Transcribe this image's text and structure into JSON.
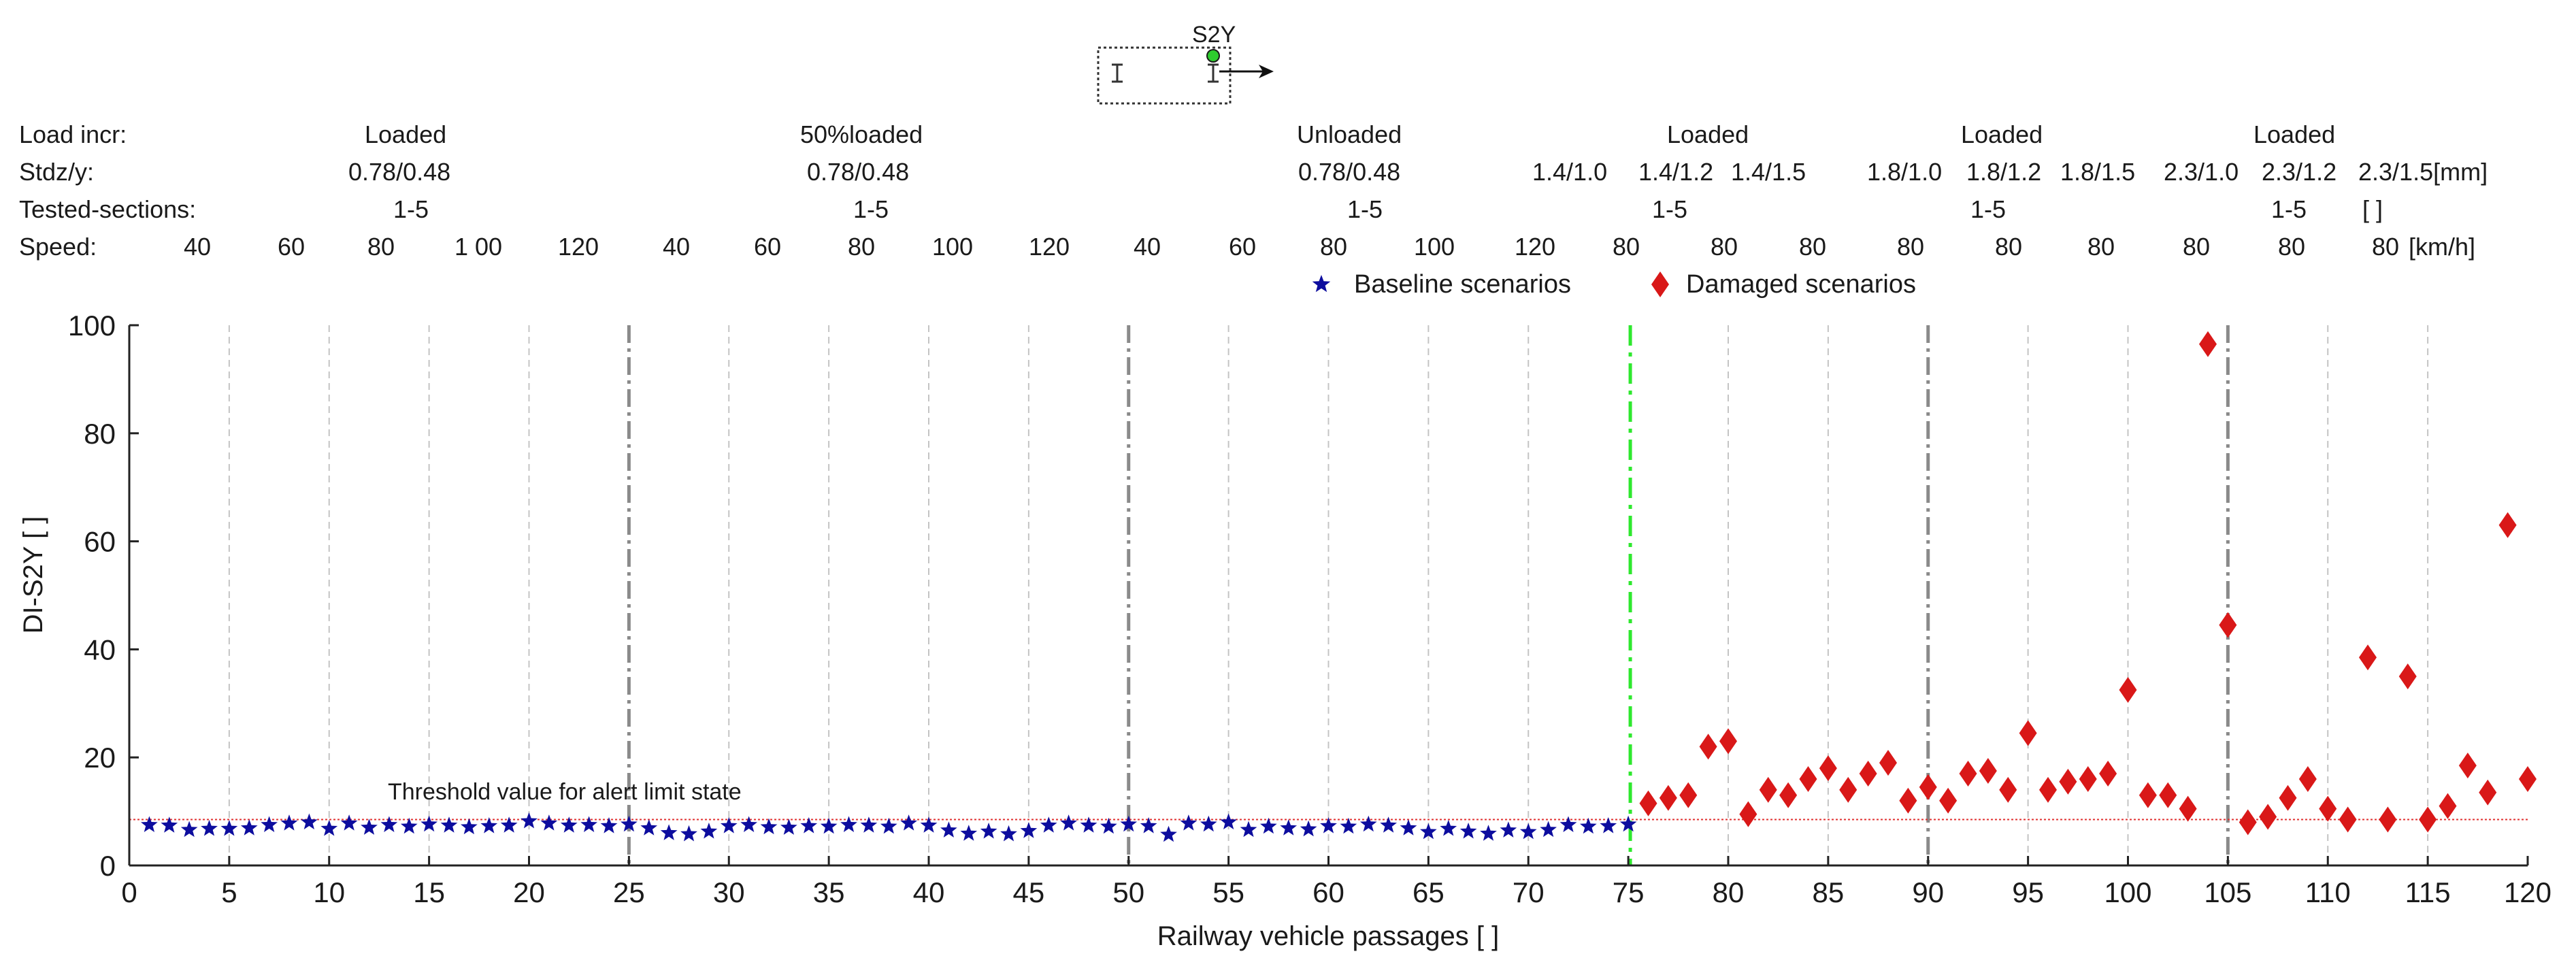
{
  "sensor": {
    "label": "S2Y"
  },
  "header_rows": {
    "load_incr": {
      "label": "Load incr:",
      "values": [
        "Loaded",
        "50%loaded",
        "Unloaded",
        "Loaded",
        "Loaded",
        "Loaded"
      ]
    },
    "stdz_y": {
      "label": "Stdz/y:",
      "values": [
        "0.78/0.48",
        "0.78/0.48",
        "0.78/0.48",
        "1.4/1.0",
        "1.4/1.2",
        "1.4/1.5",
        "1.8/1.0",
        "1.8/1.2",
        "1.8/1.5",
        "2.3/1.0",
        "2.3/1.2",
        "2.3/1.5[mm]"
      ]
    },
    "tested_sections": {
      "label": "Tested-sections:",
      "values": [
        "1-5",
        "1-5",
        "1-5",
        "1-5",
        "1-5",
        "1-5",
        "[ ]"
      ]
    },
    "speed": {
      "label": "Speed:",
      "values": [
        "40",
        "60",
        "80",
        "1 00",
        "120",
        "40",
        "60",
        "80",
        "100",
        "120",
        "40",
        "60",
        "80",
        "100",
        "120",
        "80",
        "80",
        "80",
        "80",
        "80",
        "80",
        "80",
        "80",
        "80",
        "[km/h]"
      ]
    }
  },
  "chart_data": {
    "type": "scatter",
    "title": "",
    "xlabel": "Railway vehicle passages [ ]",
    "ylabel": "DI-S2Y [ ]",
    "xlim": [
      0,
      120
    ],
    "ylim": [
      0,
      100
    ],
    "xticks": [
      0,
      5,
      10,
      15,
      20,
      25,
      30,
      35,
      40,
      45,
      50,
      55,
      60,
      65,
      70,
      75,
      80,
      85,
      90,
      95,
      100,
      105,
      110,
      115,
      120
    ],
    "yticks": [
      0,
      20,
      40,
      60,
      80,
      100
    ],
    "legend": {
      "position": "top",
      "entries": [
        "Baseline scenarios",
        "Damaged scenarios"
      ]
    },
    "grid": {
      "type": "vertical dashed every 5 passages"
    },
    "section_dividers_x": [
      25,
      50,
      90,
      105
    ],
    "damage_onset_x": 75.1,
    "threshold": {
      "value": 8.5,
      "label": "Threshold value for alert limit state"
    },
    "series": [
      {
        "name": "Baseline scenarios",
        "marker": "star",
        "color": "#0d0d9e",
        "x": [
          1,
          2,
          3,
          4,
          5,
          6,
          7,
          8,
          9,
          10,
          11,
          12,
          13,
          14,
          15,
          16,
          17,
          18,
          19,
          20,
          21,
          22,
          23,
          24,
          25,
          26,
          27,
          28,
          29,
          30,
          31,
          32,
          33,
          34,
          35,
          36,
          37,
          38,
          39,
          40,
          41,
          42,
          43,
          44,
          45,
          46,
          47,
          48,
          49,
          50,
          51,
          52,
          53,
          54,
          55,
          56,
          57,
          58,
          59,
          60,
          61,
          62,
          63,
          64,
          65,
          66,
          67,
          68,
          69,
          70,
          71,
          72,
          73,
          74,
          75
        ],
        "y": [
          7.5,
          7.4,
          6.6,
          6.8,
          6.8,
          6.9,
          7.5,
          7.8,
          8.0,
          6.8,
          7.8,
          7.0,
          7.5,
          7.2,
          7.6,
          7.4,
          7.1,
          7.3,
          7.4,
          8.2,
          7.8,
          7.4,
          7.5,
          7.3,
          7.6,
          6.9,
          6.0,
          5.8,
          6.3,
          7.3,
          7.5,
          7.1,
          7.0,
          7.3,
          7.2,
          7.5,
          7.4,
          7.2,
          7.8,
          7.4,
          6.5,
          5.9,
          6.3,
          5.8,
          6.4,
          7.4,
          7.8,
          7.4,
          7.2,
          7.6,
          7.3,
          5.7,
          7.8,
          7.6,
          8.0,
          6.6,
          7.2,
          6.9,
          6.7,
          7.3,
          7.2,
          7.6,
          7.4,
          6.9,
          6.2,
          6.8,
          6.3,
          5.9,
          6.5,
          6.2,
          6.6,
          7.5,
          7.2,
          7.3,
          7.6
        ]
      },
      {
        "name": "Damaged scenarios",
        "marker": "diamond",
        "color": "#d91818",
        "x": [
          76,
          77,
          78,
          79,
          80,
          81,
          82,
          83,
          84,
          85,
          86,
          87,
          88,
          89,
          90,
          91,
          92,
          93,
          94,
          95,
          96,
          97,
          98,
          99,
          100,
          101,
          102,
          103,
          104,
          105,
          106,
          107,
          108,
          109,
          110,
          111,
          112,
          113,
          114,
          115,
          116,
          117,
          118,
          119,
          120
        ],
        "y": [
          11.5,
          12.5,
          13,
          22,
          23,
          9.5,
          14,
          13,
          16,
          18,
          14,
          17,
          19,
          12,
          14.5,
          12,
          17,
          17.5,
          14,
          24.5,
          14,
          15.5,
          16,
          17,
          32.5,
          13,
          13,
          10.5,
          96.5,
          44.5,
          8,
          9,
          12.5,
          16,
          10.5,
          8.5,
          38.5,
          8.5,
          35,
          8.5,
          11,
          18.5,
          13.5,
          63,
          16
        ]
      }
    ]
  }
}
